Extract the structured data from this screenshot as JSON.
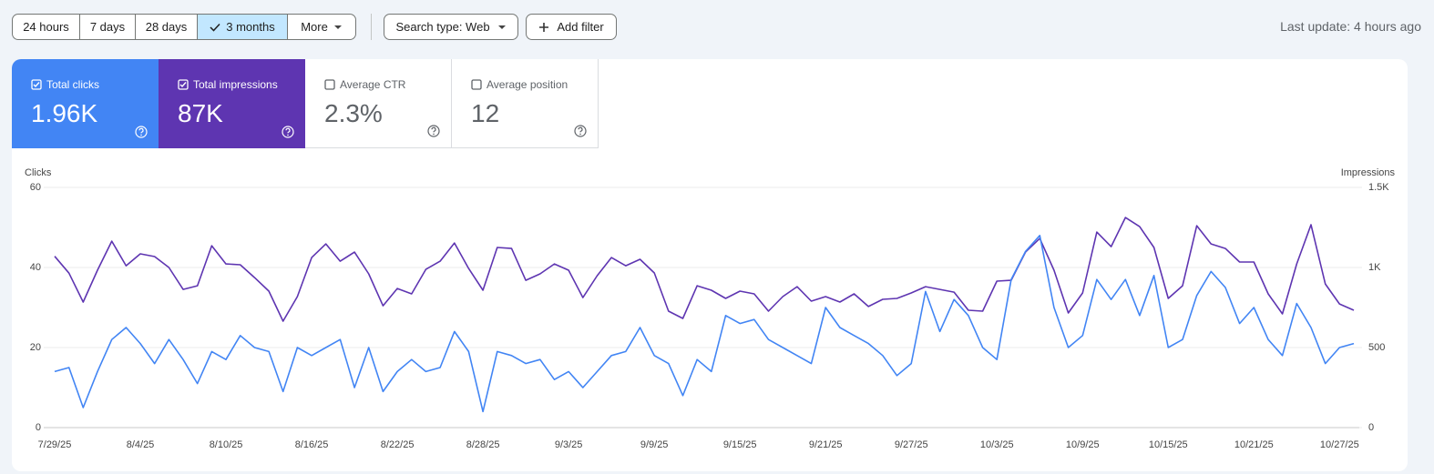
{
  "toolbar": {
    "ranges": [
      "24 hours",
      "7 days",
      "28 days",
      "3 months"
    ],
    "selected": 3,
    "more": "More",
    "search_type": "Search type: Web",
    "add_filter": "Add filter",
    "last_update": "Last update: 4 hours ago"
  },
  "metrics": [
    {
      "label": "Total clicks",
      "value": "1.96K",
      "checked": true,
      "color": "#4285f4"
    },
    {
      "label": "Total impressions",
      "value": "87K",
      "checked": true,
      "color": "#5e35b1"
    },
    {
      "label": "Average CTR",
      "value": "2.3%",
      "checked": false
    },
    {
      "label": "Average position",
      "value": "12",
      "checked": false
    }
  ],
  "chart_data": {
    "type": "line",
    "categories": [
      "7/29/25",
      null,
      null,
      null,
      null,
      null,
      "8/4/25",
      null,
      null,
      null,
      null,
      null,
      "8/10/25",
      null,
      null,
      null,
      null,
      null,
      "8/16/25",
      null,
      null,
      null,
      null,
      null,
      "8/22/25",
      null,
      null,
      null,
      null,
      null,
      "8/28/25",
      null,
      null,
      null,
      null,
      null,
      "9/3/25",
      null,
      null,
      null,
      null,
      null,
      "9/9/25",
      null,
      null,
      null,
      null,
      null,
      "9/15/25",
      null,
      null,
      null,
      null,
      null,
      "9/21/25",
      null,
      null,
      null,
      null,
      null,
      "9/27/25",
      null,
      null,
      null,
      null,
      null,
      "10/3/25",
      null,
      null,
      null,
      null,
      null,
      "10/9/25",
      null,
      null,
      null,
      null,
      null,
      "10/15/25",
      null,
      null,
      null,
      null,
      null,
      "10/21/25",
      null,
      null,
      null,
      null,
      null,
      "10/27/25",
      null
    ],
    "series": [
      {
        "name": "Clicks",
        "color": "#4285f4",
        "values": [
          14,
          15,
          5,
          14,
          22,
          25,
          21,
          16,
          22,
          17,
          11,
          19,
          17,
          23,
          20,
          19,
          9,
          20,
          18,
          20,
          22,
          10,
          20,
          9,
          14,
          17,
          14,
          15,
          24,
          19,
          4,
          19,
          18,
          16,
          17,
          12,
          14,
          10,
          14,
          18,
          19,
          25,
          18,
          16,
          8,
          17,
          14,
          28,
          26,
          27,
          22,
          20,
          18,
          16,
          30,
          25,
          23,
          21,
          18,
          13,
          16,
          34,
          24,
          32,
          28,
          20,
          17,
          37,
          44,
          48,
          30,
          20,
          23,
          37,
          32,
          37,
          28,
          38,
          20,
          22,
          33,
          39,
          35,
          26,
          30,
          22,
          18,
          31,
          25,
          16,
          20,
          21
        ]
      },
      {
        "name": "Impressions",
        "color": "#5e35b1",
        "axis": "y2",
        "values": [
          1070,
          965,
          784,
          983,
          1164,
          1011,
          1085,
          1068,
          1000,
          863,
          886,
          1136,
          1022,
          1017,
          937,
          852,
          665,
          818,
          1062,
          1147,
          1039,
          1096,
          960,
          761,
          869,
          835,
          988,
          1039,
          1153,
          994,
          858,
          1125,
          1119,
          920,
          960,
          1022,
          983,
          812,
          949,
          1062,
          1011,
          1051,
          966,
          727,
          682,
          886,
          858,
          807,
          852,
          835,
          727,
          818,
          880,
          790,
          818,
          784,
          835,
          756,
          801,
          807,
          841,
          880,
          863,
          846,
          733,
          727,
          915,
          920,
          1096,
          1181,
          983,
          716,
          841,
          1221,
          1130,
          1312,
          1255,
          1125,
          807,
          886,
          1261,
          1147,
          1119,
          1034,
          1034,
          835,
          710,
          1022,
          1267,
          897,
          772,
          733
        ]
      }
    ],
    "ylim": [
      0,
      60
    ],
    "yticks": [
      0,
      20,
      40,
      60
    ],
    "y2lim": [
      0,
      1500
    ],
    "y2ticks": [
      0,
      500,
      {
        "value": 1000,
        "label": "1K"
      },
      {
        "value": 1500,
        "label": "1.5K"
      }
    ],
    "grid": true
  }
}
